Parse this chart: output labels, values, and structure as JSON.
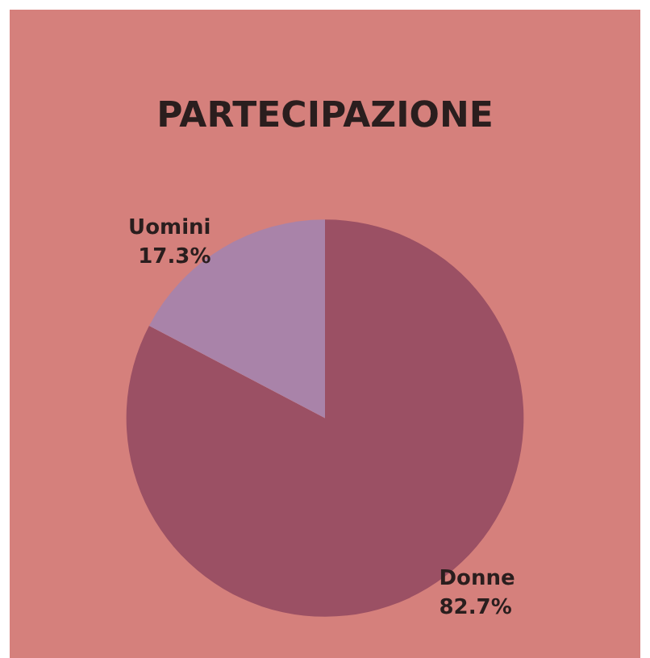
{
  "chart_data": {
    "type": "pie",
    "title": "PARTECIPAZIONE",
    "categories": [
      "Donne",
      "Uomini"
    ],
    "values": [
      82.7,
      17.3
    ],
    "colors": [
      "#9b5064",
      "#a983a9"
    ],
    "value_labels": [
      "82.7%",
      "17.3%"
    ],
    "legend": false
  }
}
